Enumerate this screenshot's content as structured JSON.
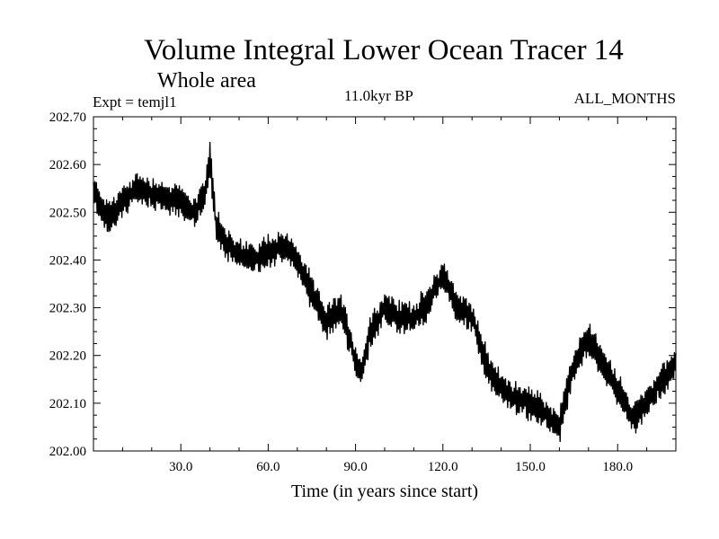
{
  "chart_data": {
    "type": "line",
    "title": "Volume Integral Lower Ocean Tracer 14",
    "subtitle": "Whole area",
    "expt_label": "Expt = temjl1",
    "period_label": "11.0kyr BP",
    "months_label": "ALL_MONTHS",
    "xlabel": "Time (in years since start)",
    "ylabel": "",
    "xlim": [
      0,
      200
    ],
    "ylim": [
      202.0,
      202.7
    ],
    "x_ticks": [
      30,
      60,
      90,
      120,
      150,
      180
    ],
    "x_tick_labels": [
      "30.0",
      "60.0",
      "90.0",
      "120.0",
      "150.0",
      "180.0"
    ],
    "y_ticks": [
      202.0,
      202.1,
      202.2,
      202.3,
      202.4,
      202.5,
      202.6,
      202.7
    ],
    "y_tick_labels": [
      "202.00",
      "202.10",
      "202.20",
      "202.30",
      "202.40",
      "202.50",
      "202.60",
      "202.70"
    ],
    "grid": false,
    "series": [
      {
        "name": "Lower Ocean Tracer 14",
        "x": [
          0,
          5,
          10,
          15,
          20,
          25,
          30,
          35,
          38,
          40,
          42,
          45,
          50,
          55,
          60,
          65,
          70,
          75,
          80,
          85,
          90,
          92,
          95,
          100,
          105,
          110,
          115,
          120,
          125,
          130,
          135,
          140,
          145,
          150,
          155,
          160,
          165,
          170,
          175,
          180,
          185,
          190,
          195,
          200
        ],
        "y": [
          202.54,
          202.49,
          202.52,
          202.55,
          202.54,
          202.53,
          202.52,
          202.5,
          202.53,
          202.61,
          202.48,
          202.44,
          202.41,
          202.4,
          202.42,
          202.43,
          202.4,
          202.33,
          202.27,
          202.3,
          202.19,
          202.16,
          202.25,
          202.3,
          202.28,
          202.28,
          202.31,
          202.37,
          202.3,
          202.28,
          202.18,
          202.13,
          202.11,
          202.1,
          202.08,
          202.05,
          202.18,
          202.24,
          202.18,
          202.13,
          202.07,
          202.1,
          202.15,
          202.18
        ],
        "fluctuation_amplitude": 0.032,
        "sample_interval": 0.25,
        "color": "#000000"
      }
    ]
  }
}
